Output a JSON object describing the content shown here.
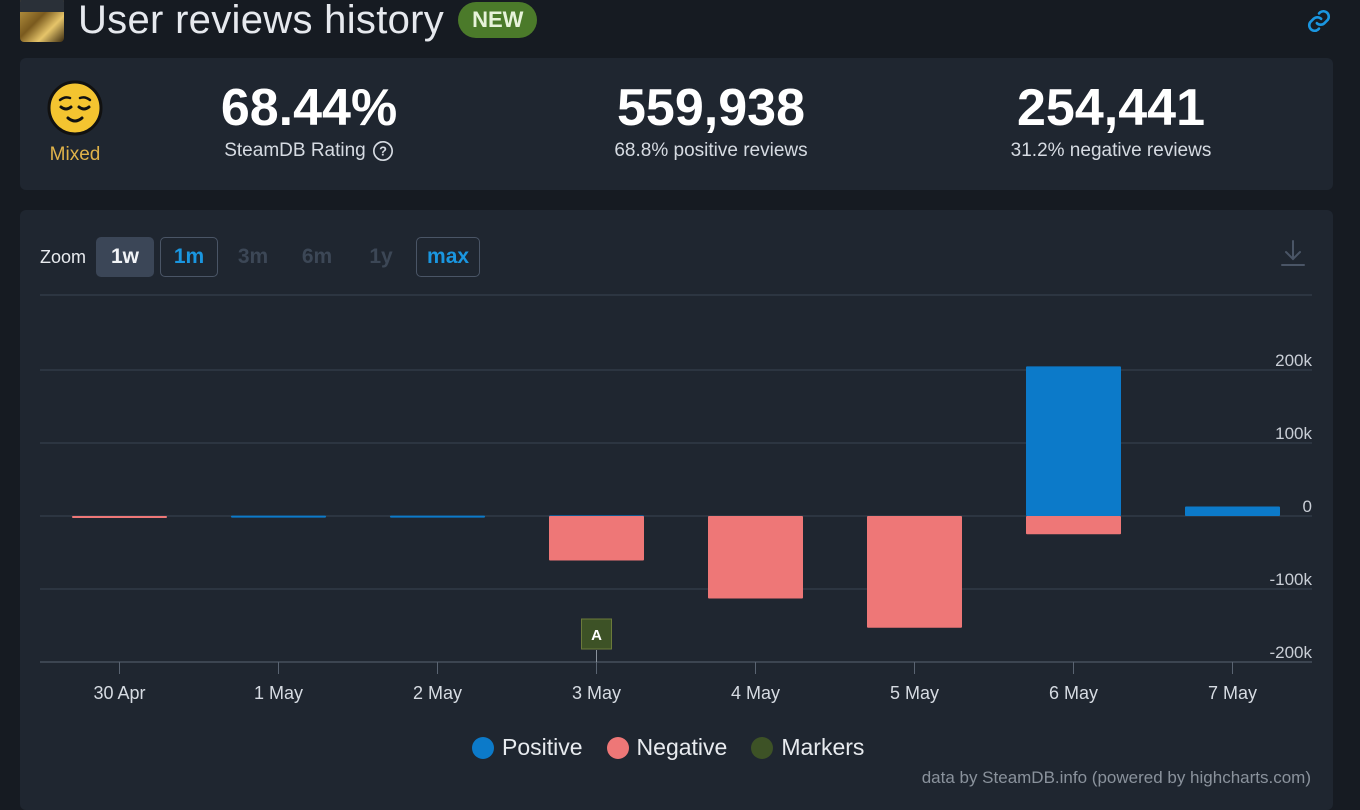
{
  "header": {
    "title": "User reviews history",
    "badge": "NEW"
  },
  "stats": {
    "rating": {
      "label": "Mixed",
      "color": "#e0b34a"
    },
    "steamdb_rating": {
      "value": "68.44%",
      "label": "SteamDB Rating"
    },
    "positive": {
      "value": "559,938",
      "label": "68.8% positive reviews"
    },
    "negative": {
      "value": "254,441",
      "label": "31.2% negative reviews"
    }
  },
  "zoom": {
    "label": "Zoom",
    "buttons": [
      {
        "label": "1w",
        "state": "active"
      },
      {
        "label": "1m",
        "state": "outlined"
      },
      {
        "label": "3m",
        "state": "disabled"
      },
      {
        "label": "6m",
        "state": "disabled"
      },
      {
        "label": "1y",
        "state": "disabled"
      },
      {
        "label": "max",
        "state": "outlined"
      }
    ]
  },
  "chart_data": {
    "type": "bar",
    "categories": [
      "30 Apr",
      "1 May",
      "2 May",
      "3 May",
      "4 May",
      "5 May",
      "6 May",
      "7 May"
    ],
    "series": [
      {
        "name": "Positive",
        "color": "#0c7ac9",
        "values": [
          0,
          500,
          500,
          800,
          0,
          0,
          205000,
          13000
        ]
      },
      {
        "name": "Negative",
        "color": "#ee7777",
        "values": [
          -1500,
          0,
          0,
          -61000,
          -113000,
          -153000,
          -25000,
          0
        ]
      }
    ],
    "markers": {
      "name": "Markers",
      "color": "#3d5226",
      "items": [
        {
          "category": "3 May",
          "label": "A"
        }
      ]
    },
    "ylim": [
      -200000,
      200000
    ],
    "yticks": [
      200000,
      100000,
      0,
      -100000,
      -200000
    ],
    "ytick_labels": [
      "200k",
      "100k",
      "0",
      "-100k",
      "-200k"
    ],
    "grid": true,
    "legend": "bottom-center"
  },
  "credits": "data by SteamDB.info (powered by highcharts.com)"
}
